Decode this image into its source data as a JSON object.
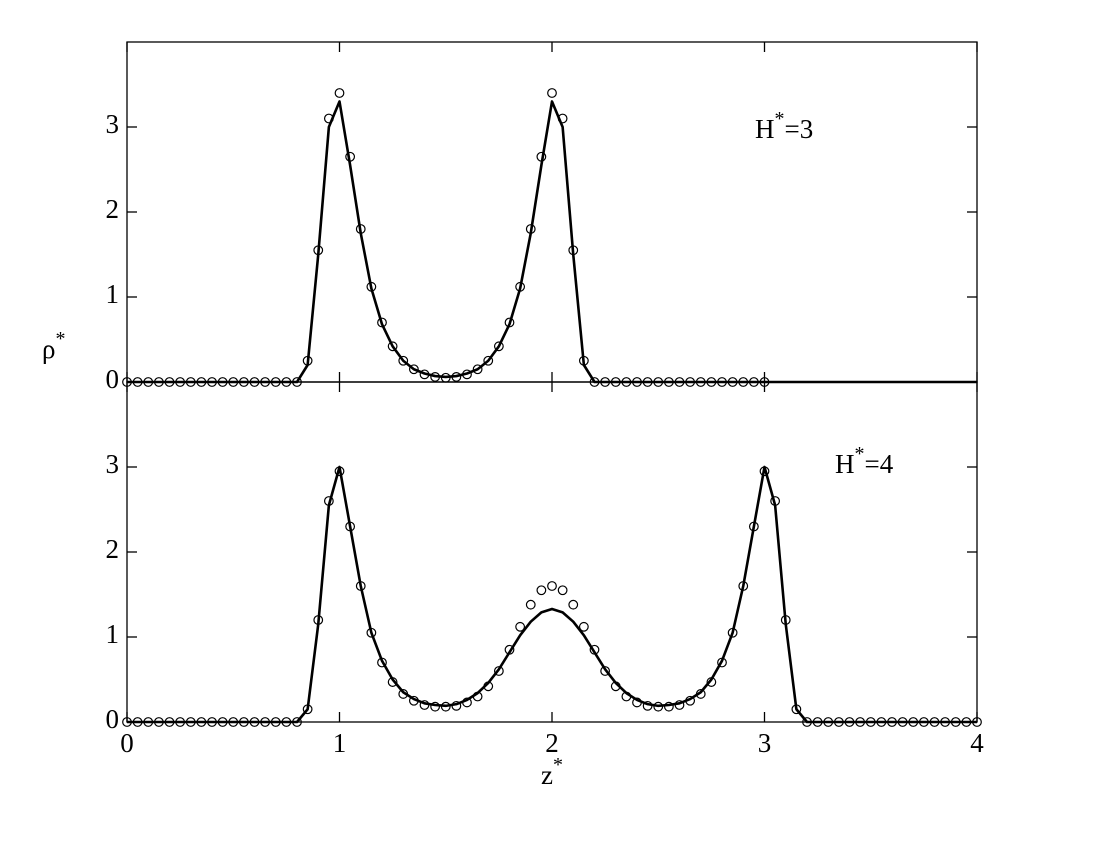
{
  "chart_data": [
    {
      "type": "line",
      "annotation": "H*=3",
      "y_label": "ρ*",
      "x": [
        0,
        0.05,
        0.1,
        0.15,
        0.2,
        0.25,
        0.3,
        0.35,
        0.4,
        0.45,
        0.5,
        0.55,
        0.6,
        0.65,
        0.7,
        0.75,
        0.8,
        0.85,
        0.9,
        0.95,
        1,
        1.05,
        1.1,
        1.15,
        1.2,
        1.25,
        1.3,
        1.35,
        1.4,
        1.45,
        1.5,
        1.55,
        1.6,
        1.65,
        1.7,
        1.75,
        1.8,
        1.85,
        1.9,
        1.95,
        2,
        2.05,
        2.1,
        2.15,
        2.2,
        2.25,
        2.3,
        2.35,
        2.4,
        2.45,
        2.5,
        2.55,
        2.6,
        2.65,
        2.7,
        2.75,
        2.8,
        2.85,
        2.9,
        2.95,
        3,
        3.05,
        3.1,
        3.15,
        3.2,
        3.25,
        3.3,
        3.35,
        3.4,
        3.45,
        3.5,
        3.55,
        3.6,
        3.65,
        3.7,
        3.75,
        3.8,
        3.85,
        3.9,
        3.95,
        4
      ],
      "series": [
        {
          "mode": "markers",
          "color": "#000000",
          "values": [
            0,
            0,
            0,
            0,
            0,
            0,
            0,
            0,
            0,
            0,
            0,
            0,
            0,
            0,
            0,
            0,
            0,
            0.25,
            1.55,
            3.1,
            3.4,
            2.65,
            1.8,
            1.12,
            0.7,
            0.42,
            0.25,
            0.15,
            0.09,
            0.06,
            0.05,
            0.06,
            0.09,
            0.15,
            0.25,
            0.42,
            0.7,
            1.12,
            1.8,
            2.65,
            3.4,
            3.1,
            1.55,
            0.25,
            0,
            0,
            0,
            0,
            0,
            0,
            0,
            0,
            0,
            0,
            0,
            0,
            0,
            0,
            0,
            0,
            0,
            null,
            null,
            null,
            null,
            null,
            null,
            null,
            null,
            null,
            null,
            null,
            null,
            null,
            null,
            null,
            null,
            null,
            null,
            null,
            null
          ]
        },
        {
          "mode": "lines",
          "color": "#000000",
          "values": [
            0,
            0,
            0,
            0,
            0,
            0,
            0,
            0,
            0,
            0,
            0,
            0,
            0,
            0,
            0,
            0,
            0,
            0.2,
            1.5,
            3.0,
            3.3,
            2.55,
            1.75,
            1.1,
            0.68,
            0.42,
            0.25,
            0.15,
            0.1,
            0.07,
            0.06,
            0.07,
            0.1,
            0.15,
            0.25,
            0.42,
            0.68,
            1.1,
            1.75,
            2.55,
            3.3,
            3.0,
            1.5,
            0.2,
            0,
            0,
            0,
            0,
            0,
            0,
            0,
            0,
            0,
            0,
            0,
            0,
            0,
            0,
            0,
            0,
            0,
            0,
            0,
            0,
            0,
            0,
            0,
            0,
            0,
            0,
            0,
            0,
            0,
            0,
            0,
            0,
            0,
            0,
            0,
            0,
            0
          ]
        }
      ],
      "xlim": [
        0,
        4
      ],
      "ylim": [
        0,
        4
      ],
      "yticks": [
        0,
        1,
        2,
        3
      ]
    },
    {
      "type": "line",
      "annotation": "H*=4",
      "x_label": "z*",
      "x": [
        0,
        0.05,
        0.1,
        0.15,
        0.2,
        0.25,
        0.3,
        0.35,
        0.4,
        0.45,
        0.5,
        0.55,
        0.6,
        0.65,
        0.7,
        0.75,
        0.8,
        0.85,
        0.9,
        0.95,
        1,
        1.05,
        1.1,
        1.15,
        1.2,
        1.25,
        1.3,
        1.35,
        1.4,
        1.45,
        1.5,
        1.55,
        1.6,
        1.65,
        1.7,
        1.75,
        1.8,
        1.85,
        1.9,
        1.95,
        2,
        2.05,
        2.1,
        2.15,
        2.2,
        2.25,
        2.3,
        2.35,
        2.4,
        2.45,
        2.5,
        2.55,
        2.6,
        2.65,
        2.7,
        2.75,
        2.8,
        2.85,
        2.9,
        2.95,
        3,
        3.05,
        3.1,
        3.15,
        3.2,
        3.25,
        3.3,
        3.35,
        3.4,
        3.45,
        3.5,
        3.55,
        3.6,
        3.65,
        3.7,
        3.75,
        3.8,
        3.85,
        3.9,
        3.95,
        4
      ],
      "series": [
        {
          "mode": "markers",
          "color": "#000000",
          "values": [
            0,
            0,
            0,
            0,
            0,
            0,
            0,
            0,
            0,
            0,
            0,
            0,
            0,
            0,
            0,
            0,
            0,
            0.15,
            1.2,
            2.6,
            2.95,
            2.3,
            1.6,
            1.05,
            0.7,
            0.47,
            0.33,
            0.25,
            0.2,
            0.18,
            0.18,
            0.19,
            0.23,
            0.3,
            0.42,
            0.6,
            0.85,
            1.12,
            1.38,
            1.55,
            1.6,
            1.55,
            1.38,
            1.12,
            0.85,
            0.6,
            0.42,
            0.3,
            0.23,
            0.19,
            0.18,
            0.18,
            0.2,
            0.25,
            0.33,
            0.47,
            0.7,
            1.05,
            1.6,
            2.3,
            2.95,
            2.6,
            1.2,
            0.15,
            0,
            0,
            0,
            0,
            0,
            0,
            0,
            0,
            0,
            0,
            0,
            0,
            0,
            0,
            0,
            0,
            0
          ]
        },
        {
          "mode": "lines",
          "color": "#000000",
          "values": [
            0,
            0,
            0,
            0,
            0,
            0,
            0,
            0,
            0,
            0,
            0,
            0,
            0,
            0,
            0,
            0,
            0,
            0.15,
            1.15,
            2.55,
            3.0,
            2.3,
            1.6,
            1.05,
            0.72,
            0.5,
            0.35,
            0.27,
            0.22,
            0.2,
            0.19,
            0.21,
            0.26,
            0.34,
            0.46,
            0.62,
            0.82,
            1.02,
            1.18,
            1.29,
            1.33,
            1.29,
            1.18,
            1.02,
            0.82,
            0.62,
            0.46,
            0.34,
            0.26,
            0.21,
            0.19,
            0.2,
            0.22,
            0.27,
            0.35,
            0.5,
            0.72,
            1.05,
            1.6,
            2.3,
            3.0,
            2.55,
            1.15,
            0.15,
            0,
            0,
            0,
            0,
            0,
            0,
            0,
            0,
            0,
            0,
            0,
            0,
            0,
            0,
            0,
            0,
            0
          ]
        }
      ],
      "xlim": [
        0,
        4
      ],
      "ylim": [
        0,
        4
      ],
      "xticks": [
        0,
        1,
        2,
        3,
        4
      ],
      "yticks": [
        0,
        1,
        2,
        3
      ]
    }
  ]
}
